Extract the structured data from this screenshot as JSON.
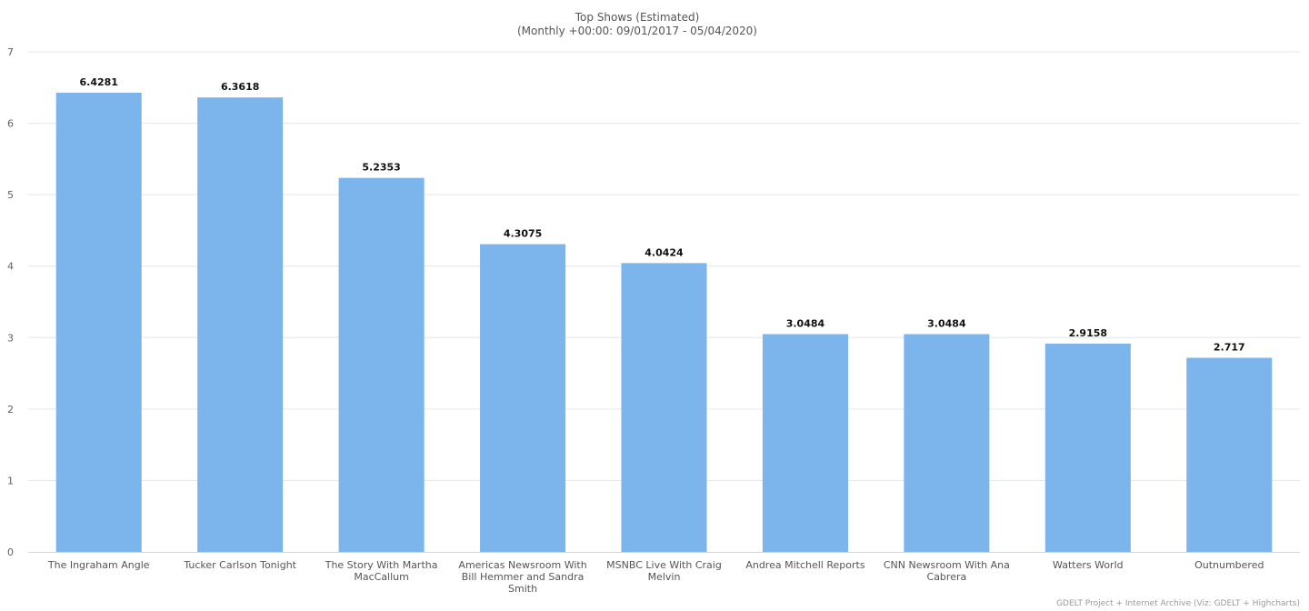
{
  "chart_data": {
    "type": "bar",
    "title": "Top Shows (Estimated)",
    "subtitle": "(Monthly +00:00: 09/01/2017 - 05/04/2020)",
    "xlabel": "",
    "ylabel": "",
    "ylim": [
      0,
      7
    ],
    "yticks": [
      0,
      1,
      2,
      3,
      4,
      5,
      6,
      7
    ],
    "grid": true,
    "legend": "none",
    "bar_color": "#7cb5ec",
    "categories": [
      [
        "The Ingraham Angle"
      ],
      [
        "Tucker Carlson Tonight"
      ],
      [
        "The Story With Martha",
        "MacCallum"
      ],
      [
        "Americas Newsroom With",
        "Bill Hemmer and Sandra",
        "Smith"
      ],
      [
        "MSNBC Live With Craig",
        "Melvin"
      ],
      [
        "Andrea Mitchell Reports"
      ],
      [
        "CNN Newsroom With Ana",
        "Cabrera"
      ],
      [
        "Watters World"
      ],
      [
        "Outnumbered"
      ]
    ],
    "values": [
      6.4281,
      6.3618,
      5.2353,
      4.3075,
      4.0424,
      3.0484,
      3.0484,
      2.9158,
      2.717
    ],
    "value_labels": [
      "6.4281",
      "6.3618",
      "5.2353",
      "4.3075",
      "4.0424",
      "3.0484",
      "3.0484",
      "2.9158",
      "2.717"
    ]
  },
  "credits": "GDELT Project + Internet Archive (Viz: GDELT + Highcharts)"
}
